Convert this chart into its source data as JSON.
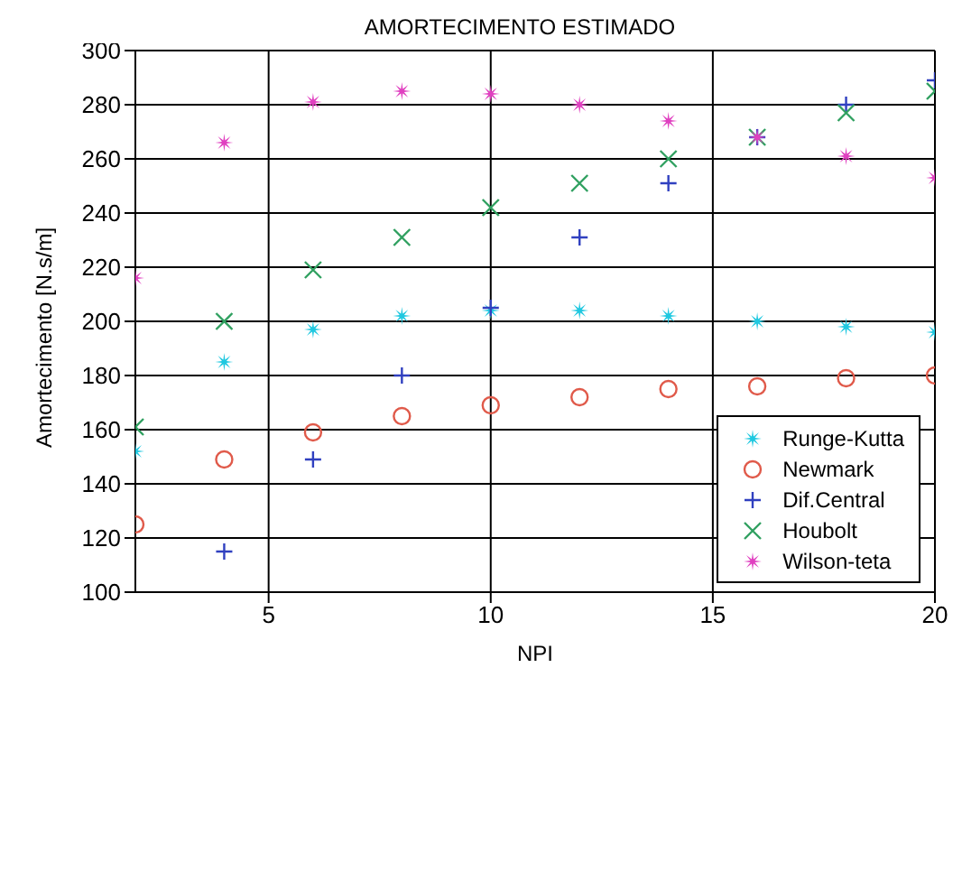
{
  "chart_data": {
    "type": "scatter",
    "title": "AMORTECIMENTO ESTIMADO",
    "xlabel": "NPI",
    "ylabel": "Amortecimento [N.s/m]",
    "x": [
      2,
      4,
      6,
      8,
      10,
      12,
      14,
      16,
      18,
      20
    ],
    "series": [
      {
        "name": "Runge-Kutta",
        "color": "#1fc8e0",
        "marker": "star",
        "values": [
          152,
          185,
          197,
          202,
          204,
          204,
          202,
          200,
          198,
          196
        ]
      },
      {
        "name": "Newmark",
        "color": "#e05a4a",
        "marker": "circle",
        "values": [
          125,
          149,
          159,
          165,
          169,
          172,
          175,
          176,
          179,
          180
        ]
      },
      {
        "name": "Dif.Central",
        "color": "#3040c0",
        "marker": "plus",
        "values": [
          null,
          115,
          149,
          180,
          205,
          231,
          251,
          268,
          280,
          289
        ]
      },
      {
        "name": "Houbolt",
        "color": "#30a060",
        "marker": "cross",
        "values": [
          161,
          200,
          219,
          231,
          242,
          251,
          260,
          268,
          277,
          285
        ]
      },
      {
        "name": "Wilson-teta",
        "color": "#e040c0",
        "marker": "star",
        "values": [
          216,
          266,
          281,
          285,
          284,
          280,
          274,
          268,
          261,
          253
        ]
      }
    ],
    "xlim": [
      2,
      20
    ],
    "xticks": [
      5,
      10,
      15,
      20
    ],
    "ylim": [
      100,
      300
    ],
    "yticks": [
      100,
      120,
      140,
      160,
      180,
      200,
      220,
      240,
      260,
      280,
      300
    ],
    "grid": true,
    "legend": "bottom right"
  }
}
